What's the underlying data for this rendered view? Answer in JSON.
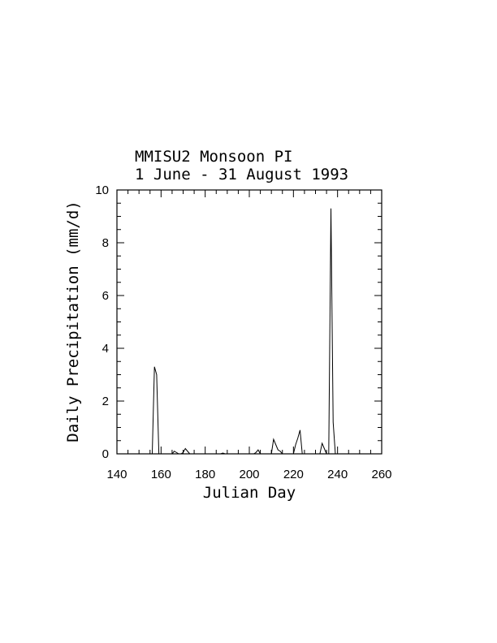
{
  "chart_data": {
    "type": "line",
    "title": "MMISU2 Monsoon PI",
    "subtitle": "1 June - 31 August 1993",
    "xlabel": "Julian Day",
    "ylabel": "Daily Precipitation (mm/d)",
    "xlim": [
      140,
      260
    ],
    "ylim": [
      0,
      10
    ],
    "x_ticks": [
      140,
      160,
      180,
      200,
      220,
      240,
      260
    ],
    "y_ticks": [
      0,
      2,
      4,
      6,
      8,
      10
    ],
    "grid": false,
    "legend": "none",
    "line_color": "#000000",
    "series": [
      {
        "x": [
          152,
          153,
          154,
          155,
          156,
          157,
          158,
          159,
          160,
          161,
          162,
          163,
          164,
          165,
          166,
          167,
          168,
          169,
          170,
          171,
          172,
          173,
          174,
          175,
          176,
          177,
          178,
          179,
          180,
          181,
          182,
          183,
          184,
          185,
          186,
          187,
          188,
          189,
          190,
          191,
          192,
          193,
          194,
          195,
          196,
          197,
          198,
          199,
          200,
          201,
          202,
          203,
          204,
          205,
          206,
          207,
          208,
          209,
          210,
          211,
          212,
          213,
          214,
          215,
          216,
          217,
          218,
          219,
          220,
          221,
          222,
          223,
          224,
          225,
          226,
          227,
          228,
          229,
          230,
          231,
          232,
          233,
          234,
          235,
          236,
          237,
          238,
          239,
          240,
          241,
          242,
          243
        ],
        "y": [
          0,
          0,
          0,
          0,
          0,
          3.3,
          3.0,
          0,
          0,
          0,
          0,
          0,
          0,
          0,
          0.1,
          0.05,
          0,
          0,
          0.05,
          0.2,
          0.1,
          0,
          0,
          0,
          0,
          0,
          0,
          0,
          0,
          0,
          0,
          0,
          0,
          0,
          0,
          0,
          0.03,
          0,
          0,
          0,
          0,
          0,
          0,
          0,
          0,
          0,
          0,
          0,
          0,
          0,
          0,
          0.05,
          0.15,
          0,
          0,
          0,
          0,
          0,
          0,
          0.55,
          0.35,
          0.15,
          0.1,
          0,
          0,
          0,
          0,
          0,
          0,
          0.35,
          0.6,
          0.9,
          0,
          0,
          0,
          0,
          0,
          0,
          0,
          0,
          0,
          0.4,
          0.2,
          0,
          0,
          9.3,
          1.2,
          0,
          0,
          0,
          0,
          0
        ]
      }
    ]
  }
}
